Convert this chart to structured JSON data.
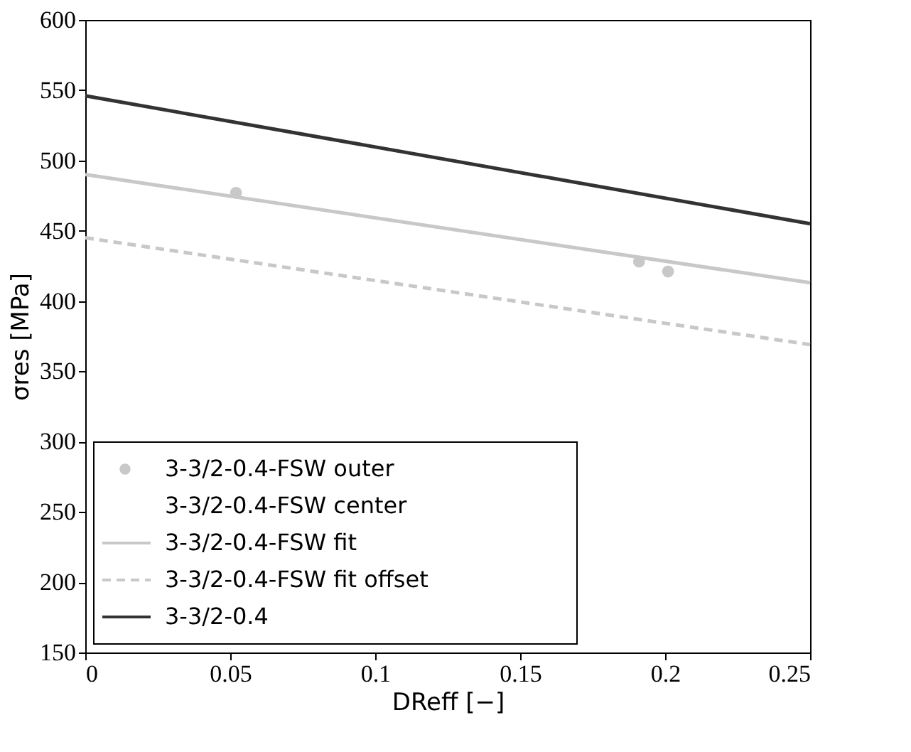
{
  "chart_data": {
    "type": "line",
    "xlabel": "DReff [−]",
    "ylabel": "σres [MPa]",
    "xlim": [
      0,
      0.25
    ],
    "xticks": [
      0,
      0.05,
      0.1,
      0.15,
      0.2,
      0.25
    ],
    "ylim": [
      150,
      600
    ],
    "yticks": [
      150,
      200,
      250,
      300,
      350,
      400,
      450,
      500,
      550,
      600
    ],
    "grid": false,
    "legend": "bottom left",
    "series": [
      {
        "name": "3-3/2-0.4-FSW outer",
        "type": "scatter",
        "marker": "circle",
        "color": "#c8c8c8",
        "x": [
          0.052,
          0.191,
          0.201
        ],
        "values": [
          477,
          428,
          421
        ]
      },
      {
        "name": "3-3/2-0.4-FSW center",
        "type": "scatter"
      },
      {
        "name": "3-3/2-0.4-FSW fit",
        "line_style": "solid",
        "color": "#c8c8c8",
        "x": [
          0,
          0.25
        ],
        "values": [
          490,
          413
        ]
      },
      {
        "name": "3-3/2-0.4-FSW fit offset",
        "line_style": "dashed",
        "color": "#c8c8c8",
        "x": [
          0,
          0.25
        ],
        "values": [
          445,
          369
        ]
      },
      {
        "name": "3-3/2-0.4",
        "line_style": "solid",
        "color": "#333333",
        "x": [
          0,
          0.25
        ],
        "values": [
          546,
          455
        ]
      }
    ]
  }
}
